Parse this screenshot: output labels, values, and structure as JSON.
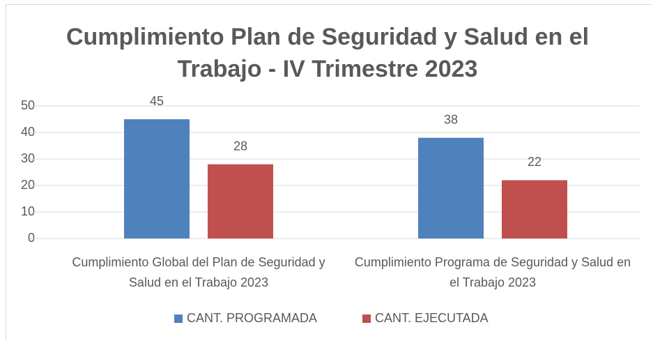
{
  "chart_data": {
    "type": "bar",
    "title": "Cumplimiento Plan de Seguridad y Salud en el Trabajo - IV Trimestre 2023",
    "categories": [
      "Cumplimiento Global del  Plan de Seguridad y Salud en el Trabajo 2023",
      "Cumplimiento Programa de Seguridad y Salud en el Trabajo 2023"
    ],
    "series": [
      {
        "name": "CANT. PROGRAMADA",
        "color": "#4f81bd",
        "values": [
          45,
          38
        ]
      },
      {
        "name": "CANT. EJECUTADA",
        "color": "#c0504d",
        "values": [
          28,
          22
        ]
      }
    ],
    "ylim": [
      0,
      50
    ],
    "yticks": [
      0,
      10,
      20,
      30,
      40,
      50
    ],
    "grid": true,
    "legend": "bottom"
  }
}
